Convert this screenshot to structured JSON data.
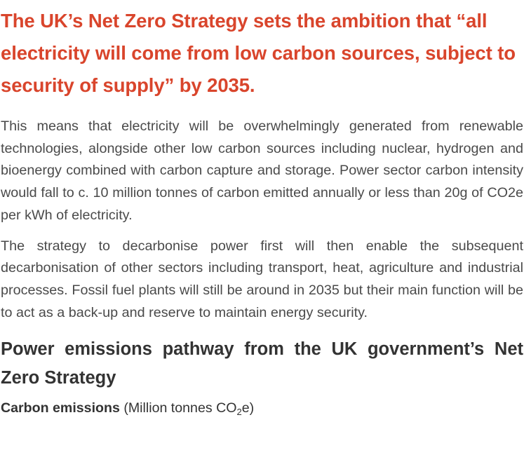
{
  "headline": "The UK’s Net Zero Strategy sets the ambition that “all electricity will come from low carbon sources, subject to security of supply” by 2035.",
  "paragraphs": [
    "This means that electricity will be overwhelmingly generated from renew­able technologies, alongside other low carbon sources including nucle­ar, hydrogen and bioenergy combined with carbon capture and storage. Power sector carbon intensity would fall to c. 10 million tonnes of carbon emitted annually or less than 20g of CO2e per kWh of electricity.",
    "The strategy to decarbonise power first will then enable the subsequent decarbonisation of other sectors including transport, heat, agriculture and industrial processes. Fossil fuel plants will still be around in 2035 but their main function will be to act as a back-up and reserve to maintain energy security."
  ],
  "chart": {
    "title": "Power emissions pathway from the UK government’s Net Zero Strategy",
    "axis_caption_bold": "Carbon emissions",
    "axis_caption_unit_prefix": "(Million tonnes CO",
    "axis_caption_unit_sub": "2",
    "axis_caption_unit_suffix": "e)"
  },
  "colors": {
    "headline": "#d9452c",
    "body_text": "#4a4a4a",
    "chart_title": "#333333"
  }
}
